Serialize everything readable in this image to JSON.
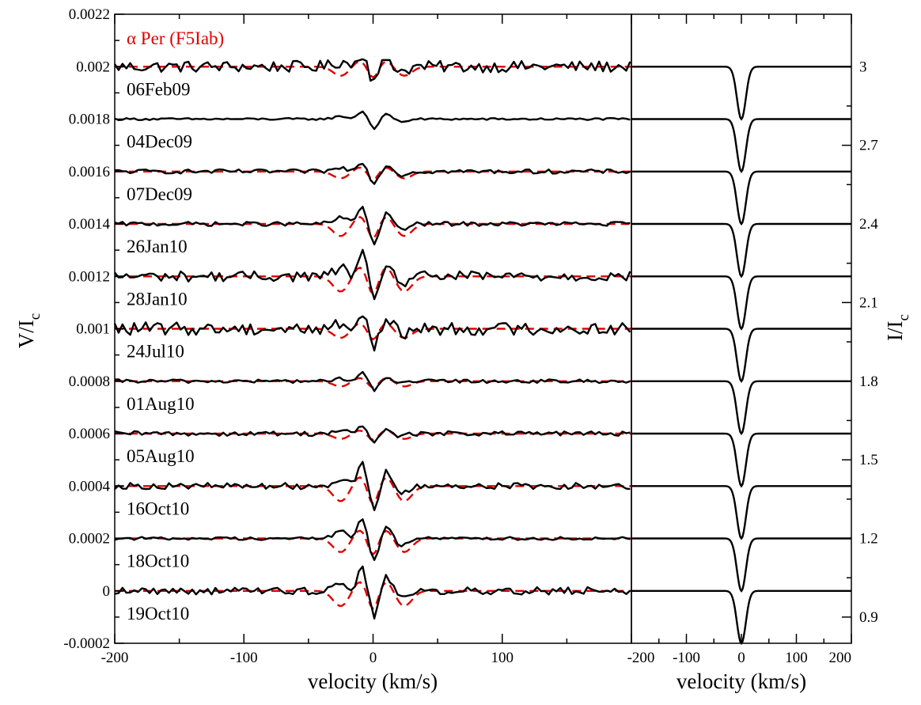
{
  "chart_data": [
    {
      "type": "line",
      "panel": "left",
      "xlabel": "velocity (km/s)",
      "ylabel": "V/I",
      "ylabel_sub": "c",
      "xlim": [
        -200,
        200
      ],
      "ylim": [
        -0.0002,
        0.0022
      ],
      "xticks": [
        -200,
        -100,
        0,
        100
      ],
      "xtick_labels": [
        "-200",
        "-100",
        "0",
        "100"
      ],
      "yticks": [
        -0.0002,
        0,
        0.0002,
        0.0004,
        0.0006,
        0.0008,
        0.001,
        0.0012,
        0.0014,
        0.0016,
        0.0018,
        0.002,
        0.0022
      ],
      "ytick_labels": [
        "-0.0002",
        "0",
        "0.0002",
        "0.0004",
        "0.0006",
        "0.0008",
        "0.001",
        "0.0012",
        "0.0014",
        "0.0016",
        "0.0018",
        "0.002",
        "0.0022"
      ],
      "annotation": "α Per (F5Iab)",
      "annotation_color": "#e00000",
      "observed_color": "#000000",
      "model_color": "#e00000",
      "series": [
        {
          "name": "06Feb09",
          "offset": 0.002,
          "amplitude": 6e-05,
          "noise": 2.2e-05,
          "has_model": true
        },
        {
          "name": "04Dec09",
          "offset": 0.0018,
          "amplitude": 3.5e-05,
          "noise": 4e-06,
          "has_model": false
        },
        {
          "name": "07Dec09",
          "offset": 0.0016,
          "amplitude": 4.5e-05,
          "noise": 8e-06,
          "has_model": true
        },
        {
          "name": "26Jan10",
          "offset": 0.0014,
          "amplitude": 8e-05,
          "noise": 8e-06,
          "has_model": true
        },
        {
          "name": "28Jan10",
          "offset": 0.0012,
          "amplitude": 0.0001,
          "noise": 2e-05,
          "has_model": true
        },
        {
          "name": "24Jul10",
          "offset": 0.001,
          "amplitude": 6e-05,
          "noise": 2.5e-05,
          "has_model": true
        },
        {
          "name": "01Aug10",
          "offset": 0.0008,
          "amplitude": 3.5e-05,
          "noise": 7e-06,
          "has_model": true
        },
        {
          "name": "05Aug10",
          "offset": 0.0006,
          "amplitude": 3.5e-05,
          "noise": 9e-06,
          "has_model": true
        },
        {
          "name": "16Oct10",
          "offset": 0.0004,
          "amplitude": 0.0001,
          "noise": 1.2e-05,
          "has_model": true
        },
        {
          "name": "18Oct10",
          "offset": 0.0002,
          "amplitude": 9e-05,
          "noise": 6e-06,
          "has_model": true
        },
        {
          "name": "19Oct10",
          "offset": 0.0,
          "amplitude": 0.0001,
          "noise": 1.4e-05,
          "has_model": true
        }
      ]
    },
    {
      "type": "line",
      "panel": "right",
      "xlabel": "velocity (km/s)",
      "ylabel": "I/I",
      "ylabel_sub": "c",
      "xlim": [
        -200,
        200
      ],
      "ylim": [
        0.8,
        3.2
      ],
      "xticks": [
        -200,
        -100,
        0,
        100,
        200
      ],
      "xtick_labels": [
        "-200",
        "-100",
        "0",
        "100",
        "200"
      ],
      "yticks": [
        0.9,
        1.2,
        1.5,
        1.8,
        2.1,
        2.4,
        2.7,
        3.0
      ],
      "ytick_labels": [
        "0.9",
        "1.2",
        "1.5",
        "1.8",
        "2.1",
        "2.4",
        "2.7",
        "3"
      ],
      "line_depth": 0.2,
      "line_sigma": 8,
      "series": [
        {
          "name": "06Feb09",
          "continuum": 3.0
        },
        {
          "name": "04Dec09",
          "continuum": 2.8
        },
        {
          "name": "07Dec09",
          "continuum": 2.6
        },
        {
          "name": "26Jan10",
          "continuum": 2.4
        },
        {
          "name": "28Jan10",
          "continuum": 2.2
        },
        {
          "name": "24Jul10",
          "continuum": 2.0
        },
        {
          "name": "01Aug10",
          "continuum": 1.8
        },
        {
          "name": "05Aug10",
          "continuum": 1.6
        },
        {
          "name": "16Oct10",
          "continuum": 1.4
        },
        {
          "name": "18Oct10",
          "continuum": 1.2
        },
        {
          "name": "19Oct10",
          "continuum": 1.0
        }
      ]
    }
  ]
}
